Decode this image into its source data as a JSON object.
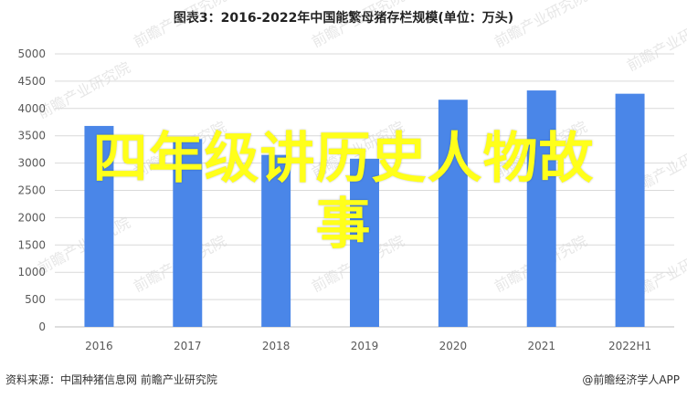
{
  "chart_data": {
    "type": "bar",
    "title": "图表3：2016-2022年中国能繁母猪存栏规模(单位：万头)",
    "categories": [
      "2016",
      "2017",
      "2018",
      "2019",
      "2020",
      "2021",
      "2022H1"
    ],
    "values": [
      3680,
      3440,
      3150,
      3080,
      4160,
      4330,
      4270
    ],
    "ylim": [
      0,
      5000
    ],
    "yticks": [
      0,
      500,
      1000,
      1500,
      2000,
      2500,
      3000,
      3500,
      4000,
      4500,
      5000
    ],
    "grid": true,
    "legend": "none",
    "xlabel": "",
    "ylabel": "",
    "bar_color": "#4a86e8"
  },
  "watermark": "前瞻产业研究院",
  "overlay": {
    "line1": "四年级讲历史人物故",
    "line2": "事",
    "color": "#ffff1a"
  },
  "footer": {
    "source": "资料来源：中国种猪信息网 前瞻产业研究院",
    "logo": "@前瞻经济学人APP"
  }
}
